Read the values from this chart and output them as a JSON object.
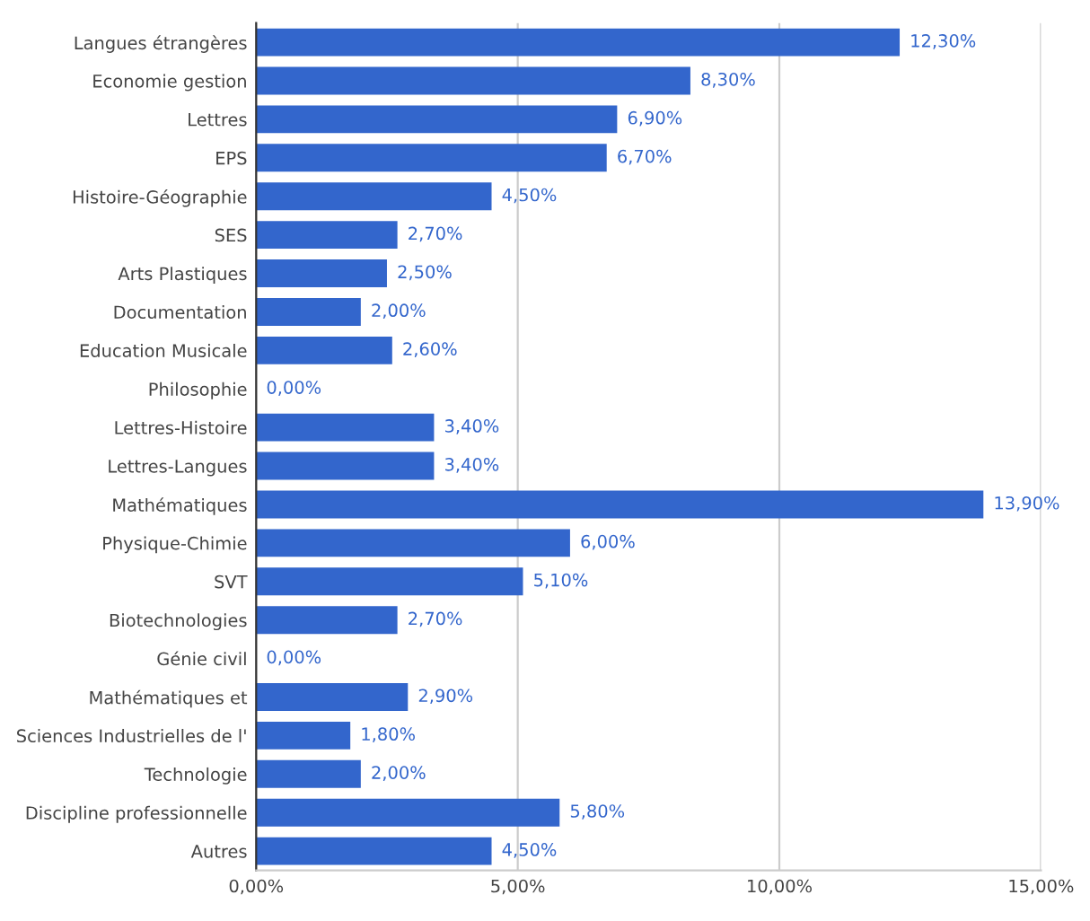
{
  "chart_data": {
    "type": "bar",
    "orientation": "horizontal",
    "categories": [
      "Langues étrangères",
      "Economie gestion",
      "Lettres",
      "EPS",
      "Histoire-Géographie",
      "SES",
      "Arts Plastiques",
      "Documentation",
      "Education Musicale",
      "Philosophie",
      "Lettres-Histoire",
      "Lettres-Langues",
      "Mathématiques",
      "Physique-Chimie",
      "SVT",
      "Biotechnologies",
      "Génie civil",
      "Mathématiques et",
      "Sciences Industrielles de l'",
      "Technologie",
      "Discipline professionnelle",
      "Autres"
    ],
    "values": [
      12.3,
      8.3,
      6.9,
      6.7,
      4.5,
      2.7,
      2.5,
      2.0,
      2.6,
      0.0,
      3.4,
      3.4,
      13.9,
      6.0,
      5.1,
      2.7,
      0.0,
      2.9,
      1.8,
      2.0,
      5.8,
      4.5
    ],
    "value_labels": [
      "12,30%",
      "8,30%",
      "6,90%",
      "6,70%",
      "4,50%",
      "2,70%",
      "2,50%",
      "2,00%",
      "2,60%",
      "0,00%",
      "3,40%",
      "3,40%",
      "13,90%",
      "6,00%",
      "5,10%",
      "2,70%",
      "0,00%",
      "2,90%",
      "1,80%",
      "2,00%",
      "5,80%",
      "4,50%"
    ],
    "color": "#3366cc",
    "xlim": [
      0,
      15
    ],
    "xticks": [
      {
        "value": 0,
        "label": "0,00%"
      },
      {
        "value": 5,
        "label": "5,00%"
      },
      {
        "value": 10,
        "label": "10,00%"
      },
      {
        "value": 15,
        "label": "15,00%"
      }
    ],
    "grid": "x"
  }
}
